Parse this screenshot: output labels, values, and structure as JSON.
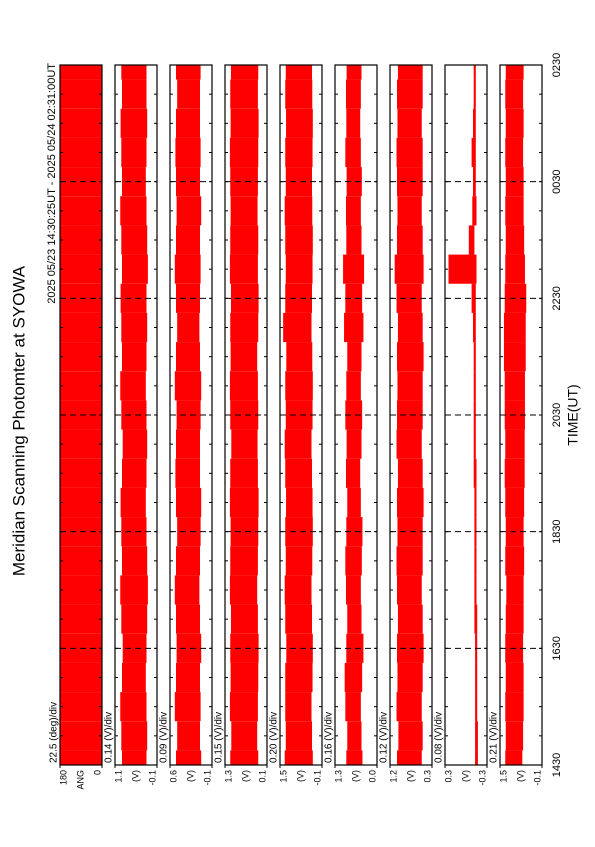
{
  "chart_data": {
    "type": "band",
    "title": "Meridian Scanning Photomter at SYOWA",
    "subtitle": "2025 05/23 14:30:25UT - 2025 05/24 02:31:00UT",
    "x_label": "TIME(UT)",
    "xlim": [
      14.5,
      26.5
    ],
    "xticks": [
      {
        "value": 14.5,
        "label": "1430"
      },
      {
        "value": 16.5,
        "label": "1630"
      },
      {
        "value": 18.5,
        "label": "1830"
      },
      {
        "value": 20.5,
        "label": "2030"
      },
      {
        "value": 22.5,
        "label": "2230"
      },
      {
        "value": 24.5,
        "label": "0030"
      },
      {
        "value": 26.5,
        "label": "0230"
      }
    ],
    "x": [
      14.5,
      15,
      15.5,
      16,
      16.5,
      17,
      17.5,
      18,
      18.5,
      19,
      19.5,
      20,
      20.5,
      21,
      21.5,
      22,
      22.5,
      23,
      23.5,
      24,
      24.5,
      25,
      25.5,
      26,
      26.5
    ],
    "color": "#ff0000",
    "grid": true,
    "panels": [
      {
        "unit_label": "ANG",
        "scale_label": "22.5 (deg)/div",
        "ylim": [
          0,
          180
        ],
        "yticks": [
          0,
          180
        ],
        "low": [
          0,
          0,
          0,
          0,
          0,
          0,
          0,
          0,
          0,
          0,
          0,
          0,
          0,
          0,
          0,
          0,
          0,
          0,
          0,
          0,
          0,
          0,
          0,
          0,
          0
        ],
        "high": [
          180,
          180,
          180,
          180,
          180,
          180,
          180,
          180,
          180,
          180,
          180,
          180,
          180,
          180,
          180,
          180,
          180,
          180,
          180,
          180,
          180,
          180,
          180,
          180,
          180
        ]
      },
      {
        "unit_label": "(V)",
        "scale_label": "0.14 (V)/div",
        "ylim": [
          -0.1,
          1.1
        ],
        "yticks": [
          -0.1,
          1.1
        ],
        "low": [
          0.2,
          0.18,
          0.2,
          0.22,
          0.2,
          0.18,
          0.16,
          0.18,
          0.2,
          0.22,
          0.2,
          0.18,
          0.2,
          0.22,
          0.2,
          0.18,
          0.2,
          0.16,
          0.18,
          0.2,
          0.22,
          0.2,
          0.18,
          0.2,
          0.2
        ],
        "high": [
          0.9,
          0.92,
          0.95,
          0.9,
          0.88,
          0.92,
          0.95,
          0.9,
          0.92,
          0.94,
          0.9,
          0.88,
          0.92,
          0.95,
          0.9,
          0.92,
          0.94,
          0.9,
          0.92,
          0.95,
          0.9,
          0.92,
          0.94,
          0.9,
          0.92
        ]
      },
      {
        "unit_label": "(V)",
        "scale_label": "0.09 (V)/div",
        "ylim": [
          -0.1,
          0.6
        ],
        "yticks": [
          -0.1,
          0.6
        ],
        "low": [
          0.08,
          0.1,
          0.09,
          0.1,
          0.08,
          0.1,
          0.11,
          0.1,
          0.09,
          0.08,
          0.1,
          0.1,
          0.09,
          0.08,
          0.1,
          0.11,
          0.1,
          0.09,
          0.1,
          0.08,
          0.1,
          0.09,
          0.1,
          0.1,
          0.09
        ],
        "high": [
          0.5,
          0.48,
          0.52,
          0.5,
          0.49,
          0.5,
          0.52,
          0.5,
          0.48,
          0.5,
          0.51,
          0.5,
          0.49,
          0.52,
          0.5,
          0.48,
          0.5,
          0.52,
          0.5,
          0.49,
          0.5,
          0.51,
          0.5,
          0.48,
          0.5
        ]
      },
      {
        "unit_label": "(V)",
        "scale_label": "0.15 (V)/div",
        "ylim": [
          0.1,
          1.3
        ],
        "yticks": [
          0.1,
          1.3
        ],
        "low": [
          0.35,
          0.38,
          0.36,
          0.35,
          0.34,
          0.36,
          0.38,
          0.36,
          0.35,
          0.34,
          0.36,
          0.37,
          0.35,
          0.36,
          0.38,
          0.35,
          0.34,
          0.36,
          0.35,
          0.37,
          0.36,
          0.35,
          0.34,
          0.36,
          0.35
        ],
        "high": [
          1.15,
          1.12,
          1.16,
          1.14,
          1.15,
          1.13,
          1.16,
          1.15,
          1.14,
          1.16,
          1.15,
          1.12,
          1.15,
          1.16,
          1.14,
          1.15,
          1.13,
          1.16,
          1.15,
          1.14,
          1.15,
          1.16,
          1.14,
          1.15,
          1.13
        ]
      },
      {
        "unit_label": "(V)",
        "scale_label": "0.20 (V)/div",
        "ylim": [
          -0.1,
          1.5
        ],
        "yticks": [
          -0.1,
          1.5
        ],
        "low": [
          0.25,
          0.28,
          0.3,
          0.26,
          0.25,
          0.28,
          0.3,
          0.27,
          0.25,
          0.26,
          0.28,
          0.3,
          0.26,
          0.25,
          0.27,
          0.3,
          0.28,
          0.26,
          0.25,
          0.27,
          0.28,
          0.26,
          0.25,
          0.27,
          0.28
        ],
        "high": [
          1.32,
          1.28,
          1.3,
          1.3,
          1.26,
          1.3,
          1.32,
          1.28,
          1.3,
          1.27,
          1.3,
          1.32,
          1.28,
          1.3,
          1.26,
          1.38,
          1.3,
          1.28,
          1.3,
          1.32,
          1.28,
          1.3,
          1.27,
          1.3,
          1.28
        ]
      },
      {
        "unit_label": "(V)",
        "scale_label": "0.16 (V)/div",
        "ylim": [
          0.0,
          1.3
        ],
        "yticks": [
          {
            "value": 0,
            "label": "0.0"
          },
          1.3
        ],
        "low": [
          0.45,
          0.48,
          0.5,
          0.46,
          0.42,
          0.48,
          0.5,
          0.47,
          0.45,
          0.5,
          0.52,
          0.48,
          0.46,
          0.5,
          0.48,
          0.42,
          0.46,
          0.4,
          0.48,
          0.5,
          0.47,
          0.5,
          0.52,
          0.5,
          0.48
        ],
        "high": [
          0.95,
          0.92,
          0.98,
          1.0,
          0.95,
          0.92,
          0.96,
          0.98,
          0.95,
          0.92,
          0.96,
          0.94,
          0.98,
          0.95,
          0.92,
          1.02,
          0.98,
          1.05,
          0.95,
          0.96,
          0.94,
          0.98,
          0.95,
          0.96,
          0.94
        ]
      },
      {
        "unit_label": "(V)",
        "scale_label": "0.12 (V)/div",
        "ylim": [
          0.3,
          1.2
        ],
        "yticks": [
          0.3,
          1.2
        ],
        "low": [
          0.52,
          0.5,
          0.52,
          0.5,
          0.48,
          0.5,
          0.52,
          0.5,
          0.5,
          0.48,
          0.5,
          0.52,
          0.5,
          0.5,
          0.48,
          0.5,
          0.52,
          0.48,
          0.5,
          0.52,
          0.5,
          0.5,
          0.52,
          0.5,
          0.5
        ],
        "high": [
          1.05,
          1.02,
          1.06,
          1.04,
          1.05,
          1.03,
          1.05,
          1.06,
          1.04,
          1.05,
          1.03,
          1.06,
          1.05,
          1.04,
          1.05,
          1.03,
          1.06,
          1.1,
          1.05,
          1.04,
          1.05,
          1.06,
          1.04,
          1.05,
          1.03
        ]
      },
      {
        "unit_label": "(V)",
        "scale_label": "0.08 (V)/div",
        "ylim": [
          -0.3,
          0.3
        ],
        "yticks": [
          -0.3,
          0.3
        ],
        "low": [
          -0.17,
          -0.17,
          -0.16,
          -0.16,
          -0.16,
          -0.16,
          -0.15,
          -0.15,
          -0.15,
          -0.15,
          -0.15,
          -0.14,
          -0.14,
          -0.14,
          -0.14,
          -0.14,
          -0.14,
          -0.15,
          -0.12,
          -0.15,
          -0.14,
          -0.14,
          -0.14,
          -0.14,
          -0.14
        ],
        "high": [
          -0.13,
          -0.13,
          -0.13,
          -0.13,
          -0.13,
          -0.12,
          -0.12,
          -0.12,
          -0.12,
          -0.12,
          -0.11,
          -0.11,
          -0.11,
          -0.11,
          -0.11,
          -0.1,
          -0.08,
          0.25,
          -0.04,
          -0.09,
          -0.1,
          -0.08,
          -0.1,
          -0.11,
          -0.11
        ]
      },
      {
        "unit_label": "(V)",
        "scale_label": "0.21 (V)/div",
        "ylim": [
          -0.1,
          1.5
        ],
        "yticks": [
          -0.1,
          1.5
        ],
        "low": [
          0.65,
          0.62,
          0.6,
          0.6,
          0.62,
          0.6,
          0.6,
          0.58,
          0.6,
          0.58,
          0.56,
          0.56,
          0.55,
          0.55,
          0.52,
          0.52,
          0.5,
          0.55,
          0.58,
          0.6,
          0.6,
          0.62,
          0.6,
          0.62,
          0.6
        ],
        "high": [
          1.3,
          1.28,
          1.3,
          1.28,
          1.3,
          1.28,
          1.26,
          1.3,
          1.28,
          1.3,
          1.32,
          1.3,
          1.32,
          1.32,
          1.35,
          1.35,
          1.32,
          1.3,
          1.28,
          1.3,
          1.28,
          1.3,
          1.28,
          1.3,
          1.28
        ]
      }
    ]
  }
}
